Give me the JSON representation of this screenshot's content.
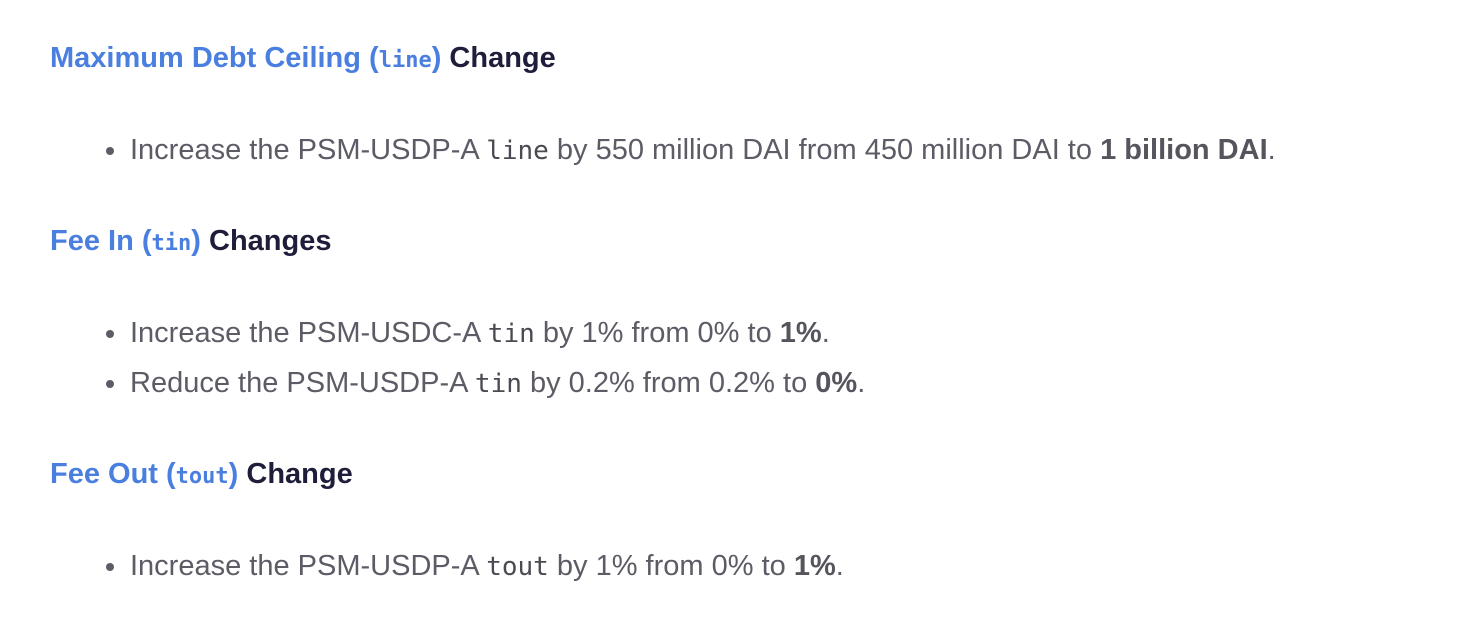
{
  "sections": [
    {
      "heading": {
        "link_before": "Maximum Debt Ceiling (",
        "code": "line",
        "link_after": ")",
        "rest": "Change"
      },
      "items": [
        {
          "before": "Increase the PSM-USDP-A",
          "code": "line",
          "after": "by 550 million DAI from 450 million DAI to",
          "bold": "1 billion DAI",
          "end": "."
        }
      ]
    },
    {
      "heading": {
        "link_before": "Fee In (",
        "code": "tin",
        "link_after": ")",
        "rest": "Changes"
      },
      "items": [
        {
          "before": "Increase the PSM-USDC-A",
          "code": "tin",
          "after": "by 1% from 0% to",
          "bold": "1%",
          "end": "."
        },
        {
          "before": "Reduce the PSM-USDP-A",
          "code": "tin",
          "after": "by 0.2% from 0.2% to",
          "bold": "0%",
          "end": "."
        }
      ]
    },
    {
      "heading": {
        "link_before": "Fee Out (",
        "code": "tout",
        "link_after": ")",
        "rest": "Change"
      },
      "items": [
        {
          "before": "Increase the PSM-USDP-A",
          "code": "tout",
          "after": "by 1% from 0% to",
          "bold": "1%",
          "end": "."
        }
      ]
    }
  ]
}
